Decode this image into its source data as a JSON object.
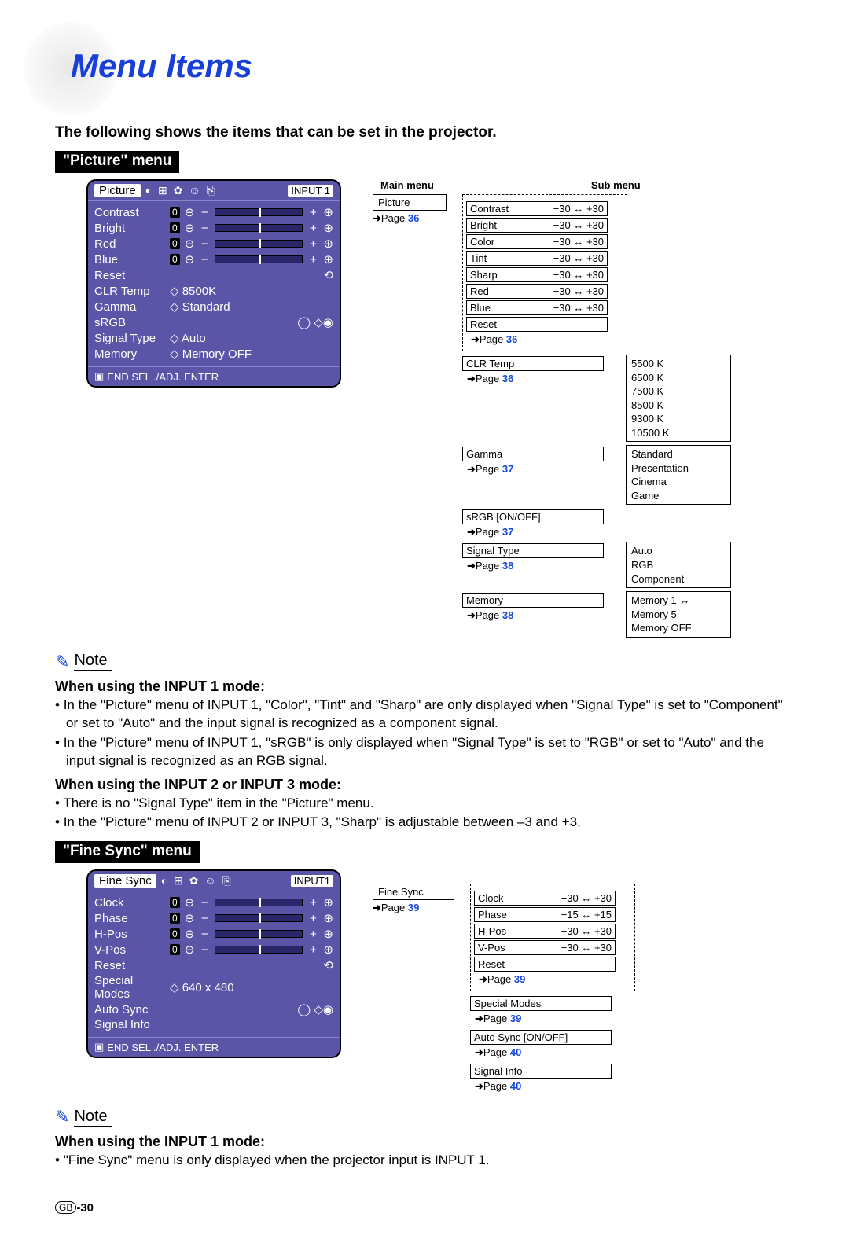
{
  "title": "Menu Items",
  "intro": "The following shows the items that can be set in the projector.",
  "picture_menu_label": "\"Picture\" menu",
  "fine_sync_menu_label": "\"Fine Sync\" menu",
  "headers": {
    "main": "Main menu",
    "sub": "Sub menu"
  },
  "page_word": "Page",
  "note_label": "Note",
  "osd_picture": {
    "title": "Picture",
    "input": "INPUT 1",
    "rows_sliders": [
      {
        "name": "Contrast",
        "val": "0"
      },
      {
        "name": "Bright",
        "val": "0"
      },
      {
        "name": "Red",
        "val": "0"
      },
      {
        "name": "Blue",
        "val": "0"
      }
    ],
    "rows_opts": [
      {
        "name": "Reset",
        "val": ""
      },
      {
        "name": "CLR Temp",
        "val": "8500K"
      },
      {
        "name": "Gamma",
        "val": "Standard"
      },
      {
        "name": "sRGB",
        "val": ""
      },
      {
        "name": "Signal Type",
        "val": "Auto"
      },
      {
        "name": "Memory",
        "val": "Memory OFF"
      }
    ],
    "footer": "END     SEL ./ADJ.   ENTER"
  },
  "osd_finesync": {
    "title": "Fine Sync",
    "input": "INPUT1",
    "rows_sliders": [
      {
        "name": "Clock",
        "val": "0"
      },
      {
        "name": "Phase",
        "val": "0"
      },
      {
        "name": "H-Pos",
        "val": "0"
      },
      {
        "name": "V-Pos",
        "val": "0"
      }
    ],
    "rows_opts": [
      {
        "name": "Reset",
        "val": ""
      },
      {
        "name": "Special Modes",
        "val": "640 x 480"
      },
      {
        "name": "Auto Sync",
        "val": ""
      },
      {
        "name": "Signal Info",
        "val": ""
      }
    ],
    "footer": "END     SEL ./ADJ.   ENTER"
  },
  "picture_diagram": {
    "main": {
      "label": "Picture",
      "page": "36"
    },
    "range_items": [
      {
        "name": "Contrast",
        "range": "−30 ↔ +30"
      },
      {
        "name": "Bright",
        "range": "−30 ↔ +30"
      },
      {
        "name": "Color",
        "range": "−30 ↔ +30"
      },
      {
        "name": "Tint",
        "range": "−30 ↔ +30"
      },
      {
        "name": "Sharp",
        "range": "−30 ↔ +30"
      },
      {
        "name": "Red",
        "range": "−30 ↔ +30"
      },
      {
        "name": "Blue",
        "range": "−30 ↔ +30"
      }
    ],
    "reset": {
      "label": "Reset",
      "page": "36"
    },
    "groups": [
      {
        "label": "CLR Temp",
        "page": "36",
        "options": [
          "5500 K",
          "6500 K",
          "7500 K",
          "8500 K",
          "9300 K",
          "10500 K"
        ]
      },
      {
        "label": "Gamma",
        "page": "37",
        "options": [
          "Standard",
          "Presentation",
          "Cinema",
          "Game"
        ]
      },
      {
        "label": "sRGB [ON/OFF]",
        "page": "37",
        "options": []
      },
      {
        "label": "Signal Type",
        "page": "38",
        "options": [
          "Auto",
          "RGB",
          "Component"
        ]
      },
      {
        "label": "Memory",
        "page": "38",
        "options": [
          "Memory 1 ↔ Memory 5",
          "Memory OFF"
        ]
      }
    ]
  },
  "finesync_diagram": {
    "main": {
      "label": "Fine Sync",
      "page": "39"
    },
    "range_items": [
      {
        "name": "Clock",
        "range": "−30 ↔ +30"
      },
      {
        "name": "Phase",
        "range": "−15 ↔ +15"
      },
      {
        "name": "H-Pos",
        "range": "−30 ↔ +30"
      },
      {
        "name": "V-Pos",
        "range": "−30 ↔ +30"
      }
    ],
    "reset": {
      "label": "Reset",
      "page": "39"
    },
    "groups": [
      {
        "label": "Special Modes",
        "page": "39"
      },
      {
        "label": "Auto Sync [ON/OFF]",
        "page": "40"
      },
      {
        "label": "Signal Info",
        "page": "40"
      }
    ]
  },
  "notes": {
    "picture": {
      "h1": "When using the INPUT 1 mode:",
      "b1": [
        "In the \"Picture\" menu of INPUT 1, \"Color\", \"Tint\" and \"Sharp\" are only displayed when \"Signal Type\" is set to \"Component\" or set to \"Auto\" and the input signal is recognized as a component signal.",
        "In the \"Picture\" menu of INPUT 1, \"sRGB\" is only displayed when \"Signal Type\" is set to \"RGB\" or set to \"Auto\" and the input signal is recognized as an RGB signal."
      ],
      "h2": "When using the INPUT 2 or INPUT 3 mode:",
      "b2": [
        "There is no \"Signal Type\" item in the \"Picture\" menu.",
        "In the \"Picture\" menu of INPUT 2 or INPUT 3, \"Sharp\" is adjustable between –3 and +3."
      ]
    },
    "finesync": {
      "h1": "When using the INPUT 1 mode:",
      "b1": [
        "\"Fine Sync\" menu is only displayed when the projector input is INPUT 1."
      ]
    }
  },
  "footer": {
    "region": "GB",
    "page": "-30"
  },
  "colors": {
    "accent": "#1840d8",
    "link": "#1648e0",
    "osd_bg": "#5b55a8"
  }
}
